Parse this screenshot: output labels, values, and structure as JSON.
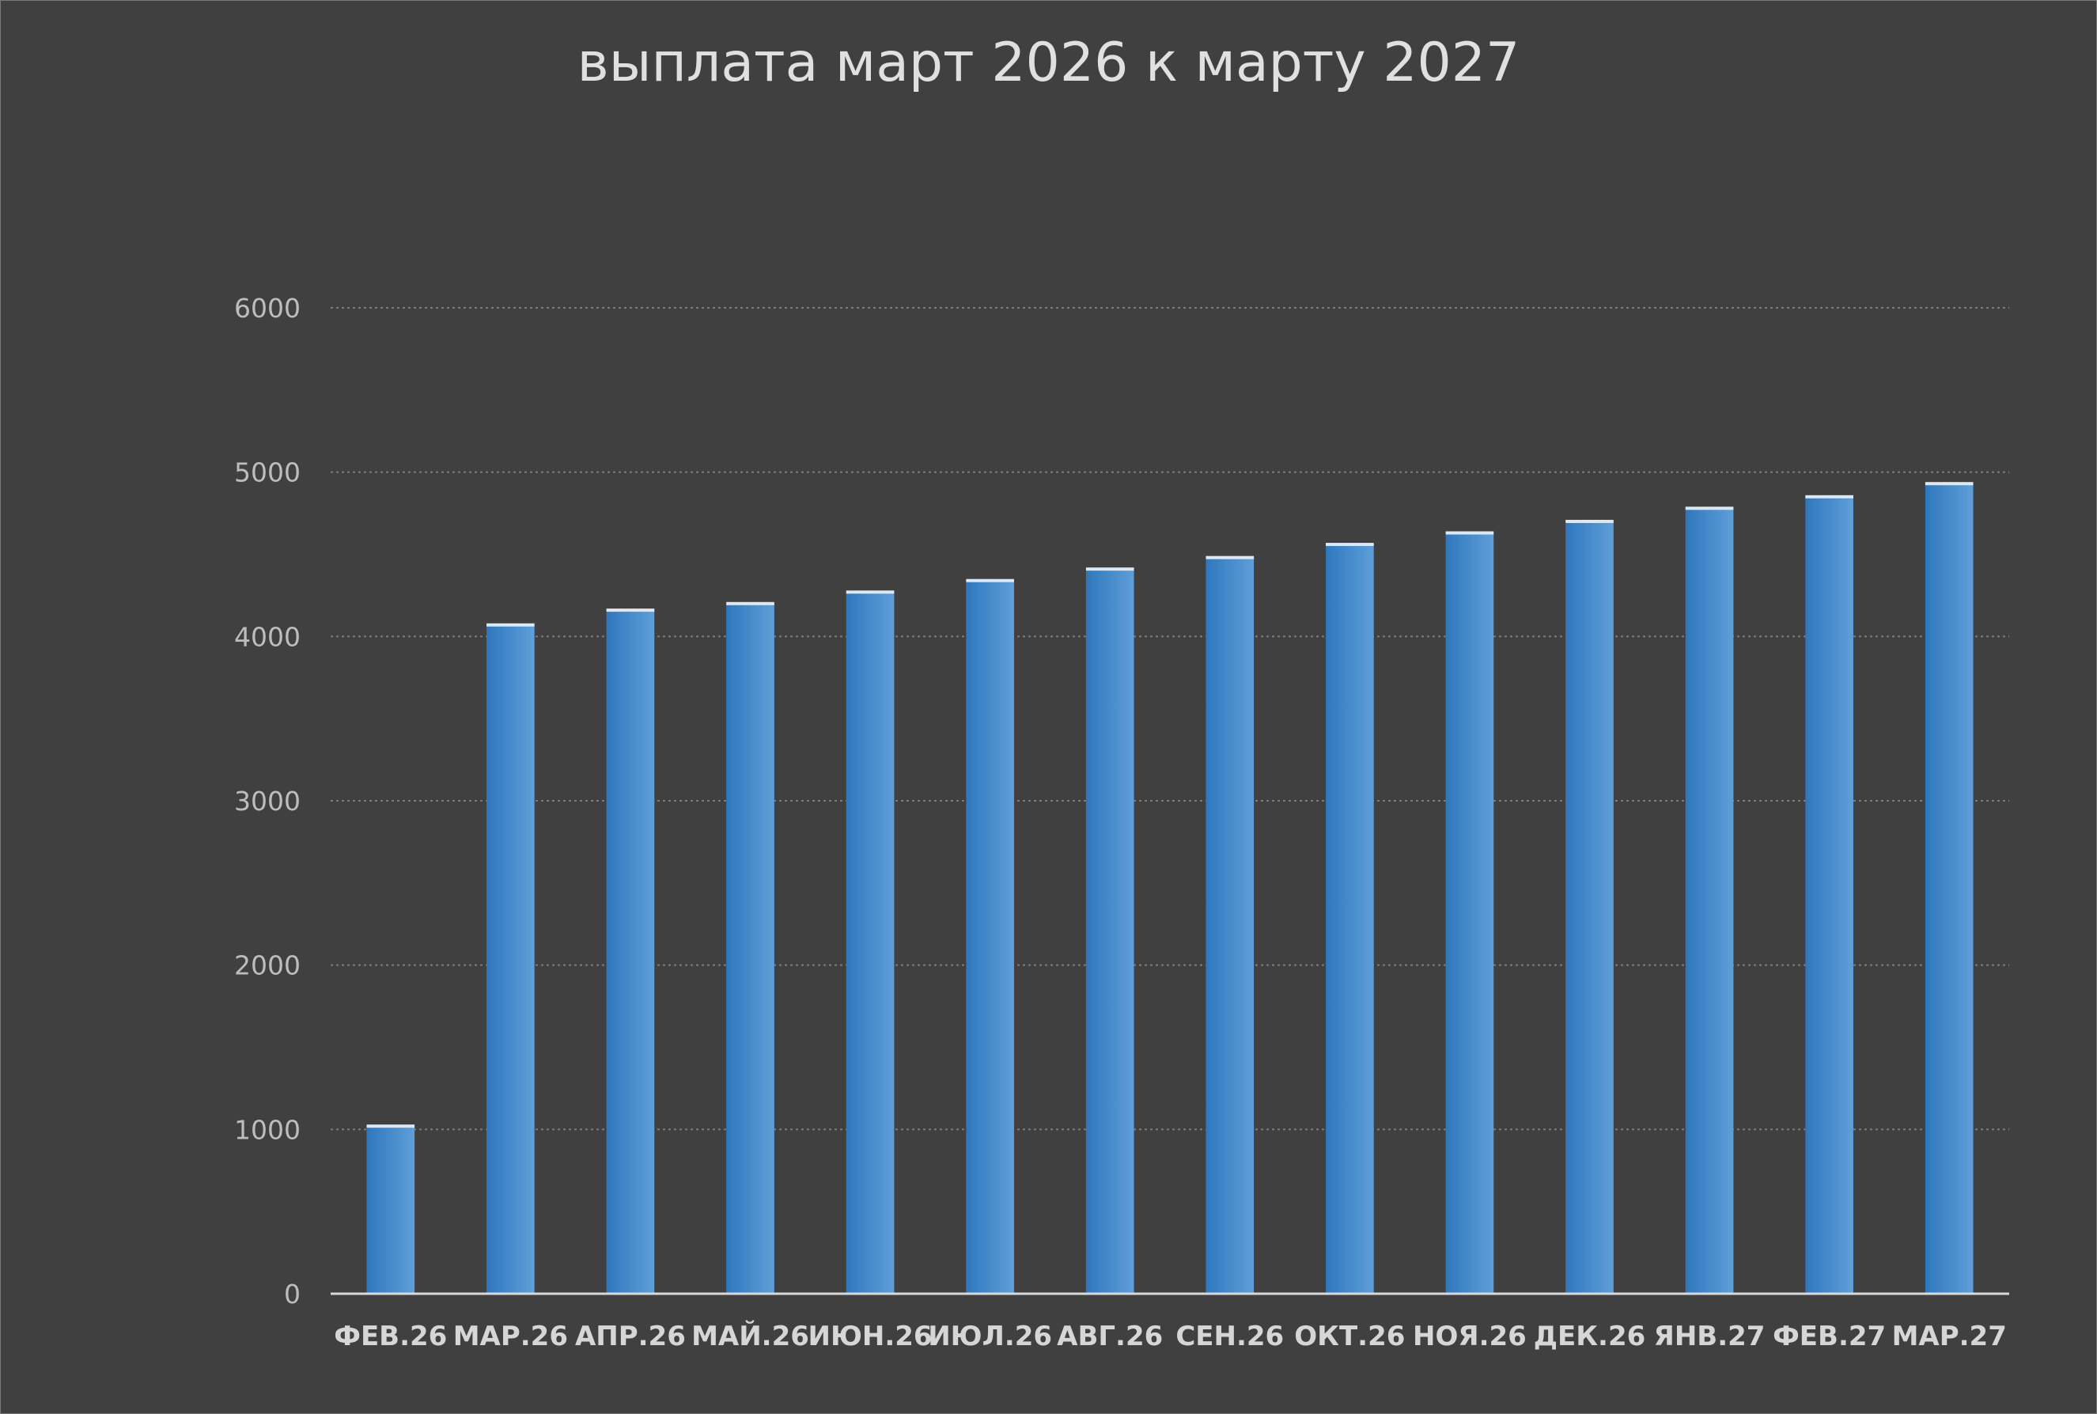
{
  "chart_data": {
    "type": "bar",
    "title": "выплата март 2026 к марту 2027",
    "xlabel": "",
    "ylabel": "",
    "categories": [
      "ФЕВ.26",
      "МАР.26",
      "АПР.26",
      "МАЙ.26",
      "ИЮН.26",
      "ИЮЛ.26",
      "АВГ.26",
      "СЕН.26",
      "ОКТ.26",
      "НОЯ.26",
      "ДЕК.26",
      "ЯНВ.27",
      "ФЕВ.27",
      "МАР.27"
    ],
    "values": [
      1020,
      4070,
      4160,
      4200,
      4270,
      4340,
      4410,
      4480,
      4560,
      4630,
      4700,
      4780,
      4850,
      4930
    ],
    "ylim": [
      0,
      6000
    ],
    "yticks": [
      0,
      1000,
      2000,
      3000,
      4000,
      5000,
      6000
    ],
    "grid": true,
    "legend": "none",
    "colors": {
      "background": "#404040",
      "bar_dark": "#2f77bd",
      "bar_light": "#5f9fd9",
      "bar_cap": "#dbe9f7",
      "grid": "#7c7c7c",
      "axis": "#d9d9d9",
      "title": "#e0e0e0",
      "tick_label": "#bdbdbd",
      "category_label": "#d6d6d6"
    }
  }
}
